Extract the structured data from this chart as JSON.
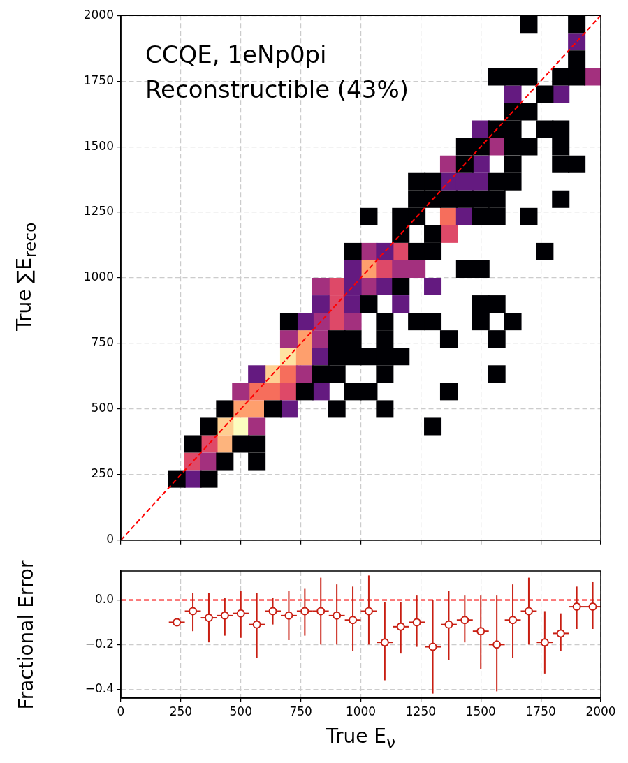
{
  "chart_data": [
    {
      "type": "scatter",
      "marker": "square",
      "ylabel": "True ∑E$_{reco}$",
      "annotations": [
        "CCQE, 1eNp0pi",
        "Reconstructible (43%)"
      ],
      "series": [
        {
          "color": "#000004",
          "x": [
            1700,
            1900,
            1900,
            1566.7,
            1633.3,
            1700,
            1833.3,
            1900,
            1766.7,
            1633.3,
            1700,
            1566.7,
            1633.3,
            1766.7,
            1833.3,
            1433.3,
            1500,
            1633.3,
            1700,
            1833.3,
            1433.3,
            1633.3,
            1833.3,
            1900,
            1233.3,
            1300,
            1566.7,
            1633.3,
            1233.3,
            1300,
            1366.7,
            1433.3,
            1500,
            1566.7,
            1833.3,
            1033.3,
            1166.7,
            1233.3,
            1500,
            1566.7,
            1700,
            1166.7,
            1300,
            966.7,
            1233.3,
            1300,
            1766.7,
            1433.3,
            1500,
            1166.7,
            1033.3,
            1500,
            1566.7,
            700,
            1100,
            1233.3,
            1300,
            1500,
            1633.3,
            900,
            966.7,
            1100,
            1366.7,
            1566.7,
            900,
            966.7,
            1033.3,
            1100,
            1166.7,
            833.3,
            900,
            1100,
            1566.7,
            766.7,
            966.7,
            1033.3,
            1366.7,
            433.3,
            633.3,
            900,
            1100,
            366.7,
            1300,
            300,
            500,
            566.7,
            433.3,
            566.7,
            233.3,
            366.7
          ],
          "values": [
            1966.7,
            1966.7,
            1833.3,
            1766.7,
            1766.7,
            1766.7,
            1766.7,
            1766.7,
            1700,
            1633.3,
            1633.3,
            1566.7,
            1566.7,
            1566.7,
            1566.7,
            1500,
            1500,
            1500,
            1500,
            1500,
            1433.3,
            1433.3,
            1433.3,
            1433.3,
            1366.7,
            1366.7,
            1366.7,
            1366.7,
            1300,
            1300,
            1300,
            1300,
            1300,
            1300,
            1300,
            1233.3,
            1233.3,
            1233.3,
            1233.3,
            1233.3,
            1233.3,
            1166.7,
            1166.7,
            1100,
            1100,
            1100,
            1100,
            1033.3,
            1033.3,
            966.7,
            900,
            900,
            900,
            833.3,
            833.3,
            833.3,
            833.3,
            833.3,
            833.3,
            766.7,
            766.7,
            766.7,
            766.7,
            766.7,
            700,
            700,
            700,
            700,
            700,
            633.3,
            633.3,
            633.3,
            633.3,
            566.7,
            566.7,
            566.7,
            566.7,
            500,
            500,
            500,
            500,
            433.3,
            433.3,
            366.7,
            366.7,
            366.7,
            300,
            300,
            233.3,
            233.3
          ]
        },
        {
          "color": "#641a80",
          "x": [
            1900,
            1633.3,
            1833.3,
            1500,
            1500,
            1366.7,
            1433.3,
            1500,
            1433.3,
            1100,
            966.7,
            966.7,
            1100,
            1300,
            833.3,
            966.7,
            1166.7,
            766.7,
            833.3,
            566.7,
            833.3,
            700,
            300
          ],
          "values": [
            1900,
            1700,
            1700,
            1566.7,
            1433.3,
            1366.7,
            1366.7,
            1366.7,
            1233.3,
            1100,
            1033.3,
            966.7,
            966.7,
            966.7,
            900,
            900,
            900,
            833.3,
            700,
            633.3,
            566.7,
            500,
            233.3
          ]
        },
        {
          "color": "#a3307e",
          "x": [
            1966.7,
            1566.7,
            1366.7,
            1033.3,
            1166.7,
            1233.3,
            833.3,
            1033.3,
            833.3,
            966.7,
            700,
            833.3,
            766.7,
            500,
            566.7,
            366.7
          ],
          "values": [
            1766.7,
            1500,
            1433.3,
            1100,
            1033.3,
            1033.3,
            966.7,
            966.7,
            833.3,
            833.3,
            766.7,
            766.7,
            633.3,
            566.7,
            433.3,
            300
          ]
        },
        {
          "color": "#de4968",
          "x": [
            1366.7,
            1166.7,
            1100,
            900,
            900,
            900,
            700,
            366.7,
            300
          ],
          "values": [
            1166.7,
            1100,
            1033.3,
            966.7,
            900,
            833.3,
            566.7,
            366.7,
            300
          ]
        },
        {
          "color": "#f66e5c",
          "x": [
            1366.7,
            700,
            566.7,
            633.3
          ],
          "values": [
            1233.3,
            633.3,
            566.7,
            566.7
          ]
        },
        {
          "color": "#fe9f6d",
          "x": [
            1033.3,
            766.7,
            766.7,
            500,
            566.7
          ],
          "values": [
            1033.3,
            766.7,
            700,
            500,
            500
          ]
        },
        {
          "color": "#fdb47d",
          "x": [
            433.3
          ],
          "values": [
            366.7
          ]
        },
        {
          "color": "#fecf92",
          "x": [
            633.3,
            433.3
          ],
          "values": [
            633.3,
            433.3
          ]
        },
        {
          "color": "#fee3a2",
          "x": [
            700
          ],
          "values": [
            700
          ]
        },
        {
          "color": "#fcfdbf",
          "x": [
            500
          ],
          "values": [
            433.3
          ]
        },
        {
          "type": "line",
          "x": [
            0,
            2000
          ],
          "values": [
            0,
            2000
          ],
          "color": "#ff0000",
          "line_style": "dashed",
          "marker": "none"
        }
      ],
      "xlim": [
        0,
        2000
      ],
      "xticks": [
        0,
        250,
        500,
        750,
        1000,
        1250,
        1500,
        1750,
        2000
      ],
      "ylim": [
        0,
        2000
      ],
      "yticks": [
        0,
        250,
        500,
        750,
        1000,
        1250,
        1500,
        1750,
        2000
      ],
      "grid": true,
      "tick_labels": "y"
    },
    {
      "type": "scatter",
      "xlabel": "True E$_{ν}$",
      "ylabel": "Fractional Error",
      "color": "#c81e12",
      "marker": "circle",
      "x": [
        233.3,
        300,
        366.7,
        433.3,
        500,
        566.7,
        633.3,
        700,
        766.7,
        833.3,
        900,
        966.7,
        1033.3,
        1100,
        1166.7,
        1233.3,
        1300,
        1366.7,
        1433.3,
        1500,
        1566.7,
        1633.3,
        1700,
        1766.7,
        1833.3,
        1900,
        1966.7
      ],
      "values": [
        -0.1,
        -0.05,
        -0.08,
        -0.07,
        -0.06,
        -0.11,
        -0.05,
        -0.07,
        -0.05,
        -0.05,
        -0.07,
        -0.09,
        -0.05,
        -0.19,
        -0.12,
        -0.1,
        -0.21,
        -0.11,
        -0.09,
        -0.14,
        -0.2,
        -0.09,
        -0.05,
        -0.19,
        -0.15,
        -0.03,
        -0.03
      ],
      "errors": [
        null,
        [
          -0.14,
          0.03
        ],
        [
          -0.19,
          0.03
        ],
        [
          -0.16,
          0.01
        ],
        [
          -0.17,
          0.04
        ],
        [
          -0.26,
          0.03
        ],
        [
          -0.11,
          0.01
        ],
        [
          -0.18,
          0.04
        ],
        [
          -0.16,
          0.05
        ],
        [
          -0.2,
          0.1
        ],
        [
          -0.2,
          0.07
        ],
        [
          -0.23,
          0.06
        ],
        [
          -0.2,
          0.11
        ],
        [
          -0.36,
          -0.01
        ],
        [
          -0.24,
          -0.01
        ],
        [
          -0.21,
          0.02
        ],
        [
          -0.42,
          0
        ],
        [
          -0.27,
          0.04
        ],
        [
          -0.19,
          0.02
        ],
        [
          -0.31,
          0.02
        ],
        [
          -0.41,
          0.02
        ],
        [
          -0.26,
          0.07
        ],
        [
          -0.2,
          0.1
        ],
        [
          -0.33,
          -0.05
        ],
        [
          -0.23,
          -0.06
        ],
        [
          -0.13,
          0.06
        ],
        [
          -0.13,
          0.08
        ]
      ],
      "xerrors": [
        33.3,
        33.3,
        33.3,
        33.3,
        33.3,
        33.3,
        33.3,
        33.3,
        33.3,
        33.3,
        33.3,
        33.3,
        33.3,
        33.3,
        33.3,
        33.3,
        33.3,
        33.3,
        33.3,
        33.3,
        33.3,
        33.3,
        33.3,
        33.3,
        33.3,
        33.3,
        33.3
      ],
      "ref_lines": [
        {
          "axis": "y",
          "value": 0,
          "color": "#ff0000",
          "line_style": "dashed"
        }
      ],
      "xlim": [
        0,
        2000
      ],
      "xticks": [
        0,
        250,
        500,
        750,
        1000,
        1250,
        1500,
        1750,
        2000
      ],
      "ylim": [
        -0.44,
        0.13
      ],
      "yticks": [
        {
          "value": -0.4,
          "label": "−0.4"
        },
        {
          "value": -0.2,
          "label": "−0.2"
        },
        {
          "value": 0,
          "label": "0.0"
        }
      ],
      "grid": true
    }
  ]
}
